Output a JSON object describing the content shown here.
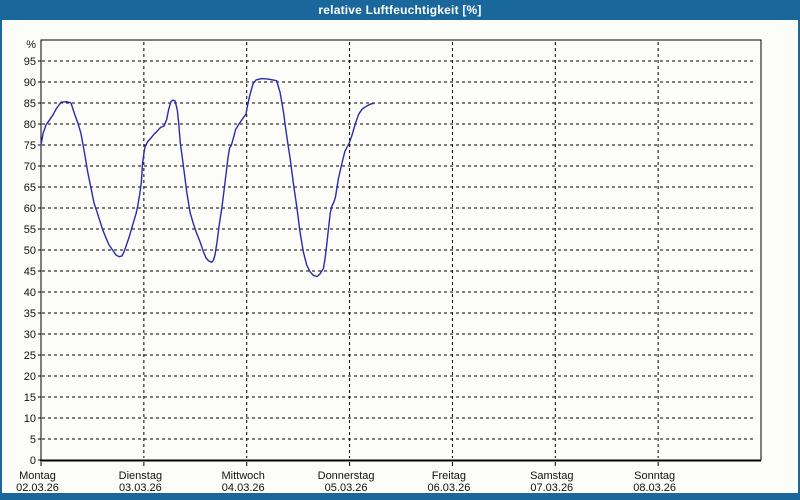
{
  "window": {
    "title": "relative Luftfeuchtigkeit [%]"
  },
  "colors": {
    "titlebar": "#1a679c",
    "window_border": "#1a679c",
    "content_bg": "#fcfcf8",
    "grid": "#000000",
    "axis": "#000000",
    "curve": "#2b2ba8",
    "label_text": "#111111",
    "title_text": "#ffffff"
  },
  "chart_data": {
    "type": "line",
    "title": "relative Luftfeuchtigkeit [%]",
    "ylabel": "%",
    "ylim": [
      0,
      100
    ],
    "ytick_step": 5,
    "ytick_labels": [
      0,
      5,
      10,
      15,
      20,
      25,
      30,
      35,
      40,
      45,
      50,
      55,
      60,
      65,
      70,
      75,
      80,
      85,
      90,
      95
    ],
    "grid": "dashed",
    "legend": "none",
    "x_days": [
      {
        "name": "Montag",
        "date": "02.03.26"
      },
      {
        "name": "Dienstag",
        "date": "03.03.26"
      },
      {
        "name": "Mittwoch",
        "date": "04.03.26"
      },
      {
        "name": "Donnerstag",
        "date": "05.03.26"
      },
      {
        "name": "Freitag",
        "date": "06.03.26"
      },
      {
        "name": "Samstag",
        "date": "07.03.26"
      },
      {
        "name": "Sonntag",
        "date": "08.03.26"
      }
    ],
    "hours_per_day": 24,
    "x_total_hours": 168,
    "series": [
      {
        "name": "relative Luftfeuchtigkeit",
        "unit": "%",
        "points_hour_value": [
          [
            0,
            75
          ],
          [
            0.5,
            77.8
          ],
          [
            1.2,
            79.8
          ],
          [
            2,
            81
          ],
          [
            2.8,
            82.2
          ],
          [
            3.6,
            83.7
          ],
          [
            4.7,
            85.2
          ],
          [
            6,
            85.3
          ],
          [
            7,
            85
          ],
          [
            7.8,
            82.5
          ],
          [
            8.6,
            80.2
          ],
          [
            9.3,
            77.8
          ],
          [
            10.1,
            73.4
          ],
          [
            10.9,
            68.6
          ],
          [
            11.7,
            64.6
          ],
          [
            12.4,
            61.1
          ],
          [
            13.1,
            59
          ],
          [
            14.4,
            54.8
          ],
          [
            15.2,
            52.8
          ],
          [
            15.9,
            51.2
          ],
          [
            16.7,
            50
          ],
          [
            17.5,
            48.8
          ],
          [
            18.2,
            48.4
          ],
          [
            18.9,
            48.6
          ],
          [
            19.4,
            49.6
          ],
          [
            19.8,
            50.8
          ],
          [
            20.6,
            53.2
          ],
          [
            21.4,
            56
          ],
          [
            22.2,
            58.7
          ],
          [
            22.6,
            60.7
          ],
          [
            23,
            63.1
          ],
          [
            23.4,
            66
          ],
          [
            23.7,
            70.7
          ],
          [
            24,
            73
          ],
          [
            24.3,
            74.6
          ],
          [
            24.9,
            75.8
          ],
          [
            25.7,
            76.7
          ],
          [
            26.4,
            77.6
          ],
          [
            27.2,
            78.4
          ],
          [
            27.9,
            79.2
          ],
          [
            28.7,
            79.5
          ],
          [
            29.3,
            81
          ],
          [
            29.8,
            83.5
          ],
          [
            30.3,
            85.3
          ],
          [
            30.8,
            85.7
          ],
          [
            31.3,
            85.5
          ],
          [
            31.8,
            83.3
          ],
          [
            32.1,
            80.5
          ],
          [
            32.5,
            75.5
          ],
          [
            33.2,
            70.2
          ],
          [
            34,
            63.9
          ],
          [
            34.8,
            58.9
          ],
          [
            35.6,
            56.1
          ],
          [
            36.3,
            54
          ],
          [
            37.1,
            52
          ],
          [
            37.9,
            49.6
          ],
          [
            38.5,
            48.1
          ],
          [
            39.1,
            47.4
          ],
          [
            39.8,
            47.1
          ],
          [
            40.2,
            47.5
          ],
          [
            40.6,
            48.8
          ],
          [
            41.1,
            52
          ],
          [
            41.6,
            56.1
          ],
          [
            42.2,
            60.1
          ],
          [
            42.7,
            64.1
          ],
          [
            43.2,
            68.2
          ],
          [
            43.6,
            71.8
          ],
          [
            44,
            74.3
          ],
          [
            44.4,
            74.9
          ],
          [
            45,
            77.1
          ],
          [
            45.4,
            78.7
          ],
          [
            46.2,
            80
          ],
          [
            47,
            81.2
          ],
          [
            47.8,
            82.3
          ],
          [
            48.3,
            85
          ],
          [
            48.8,
            87.1
          ],
          [
            49.5,
            89.6
          ],
          [
            50.2,
            90.5
          ],
          [
            51.5,
            90.8
          ],
          [
            53,
            90.7
          ],
          [
            55,
            90.3
          ],
          [
            55.8,
            87.5
          ],
          [
            56.6,
            82.7
          ],
          [
            57,
            79.5
          ],
          [
            57.7,
            74.6
          ],
          [
            58.2,
            71.4
          ],
          [
            58.9,
            65.8
          ],
          [
            59.7,
            60.1
          ],
          [
            60.4,
            54.5
          ],
          [
            61.2,
            49.6
          ],
          [
            62,
            46.4
          ],
          [
            62.8,
            44.8
          ],
          [
            63.6,
            43.9
          ],
          [
            64.4,
            43.7
          ],
          [
            65.1,
            44.3
          ],
          [
            65.9,
            45.6
          ],
          [
            66.3,
            48
          ],
          [
            66.7,
            51.6
          ],
          [
            67.1,
            55.3
          ],
          [
            67.5,
            58.9
          ],
          [
            67.9,
            60.5
          ],
          [
            68.3,
            61.3
          ],
          [
            68.7,
            62.5
          ],
          [
            69.4,
            67
          ],
          [
            70.2,
            70.6
          ],
          [
            70.9,
            73.5
          ],
          [
            71.9,
            75.4
          ],
          [
            72.6,
            77.4
          ],
          [
            73.3,
            79.9
          ],
          [
            74.1,
            82.3
          ],
          [
            74.9,
            83.5
          ],
          [
            75.7,
            84.1
          ],
          [
            76.4,
            84.5
          ],
          [
            77.1,
            84.8
          ],
          [
            77.6,
            84.9
          ]
        ]
      }
    ]
  }
}
